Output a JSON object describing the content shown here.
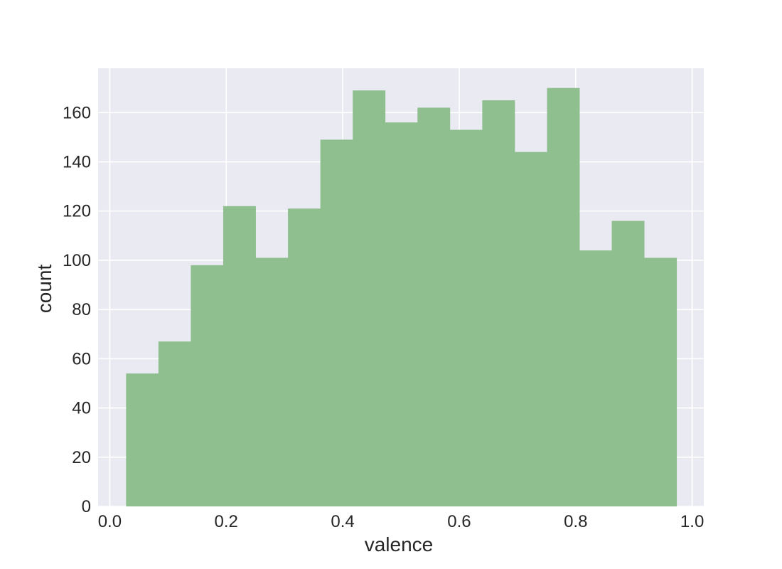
{
  "chart_data": {
    "type": "bar",
    "title": "",
    "xlabel": "valence",
    "ylabel": "count",
    "xlim": [
      -0.02,
      1.02
    ],
    "ylim": [
      0,
      178
    ],
    "xticks": [
      0.0,
      0.2,
      0.4,
      0.6,
      0.8,
      1.0
    ],
    "xtick_labels": [
      "0.0",
      "0.2",
      "0.4",
      "0.6",
      "0.8",
      "1.0"
    ],
    "yticks": [
      0,
      20,
      40,
      60,
      80,
      100,
      120,
      140,
      160
    ],
    "ytick_labels": [
      "0",
      "20",
      "40",
      "60",
      "80",
      "100",
      "120",
      "140",
      "160"
    ],
    "grid": true,
    "bin_edges": [
      0.028,
      0.0836,
      0.1392,
      0.1948,
      0.2504,
      0.306,
      0.3616,
      0.4172,
      0.4728,
      0.5284,
      0.584,
      0.6396,
      0.6952,
      0.7508,
      0.8064,
      0.862,
      0.9176,
      0.9732
    ],
    "values": [
      54,
      67,
      98,
      122,
      101,
      121,
      149,
      169,
      156,
      162,
      153,
      165,
      144,
      170,
      104,
      116,
      101
    ],
    "colors": {
      "background": "#eaeaf2",
      "grid": "#ffffff",
      "bar": "#8fbf8f",
      "text": "#262626"
    }
  }
}
